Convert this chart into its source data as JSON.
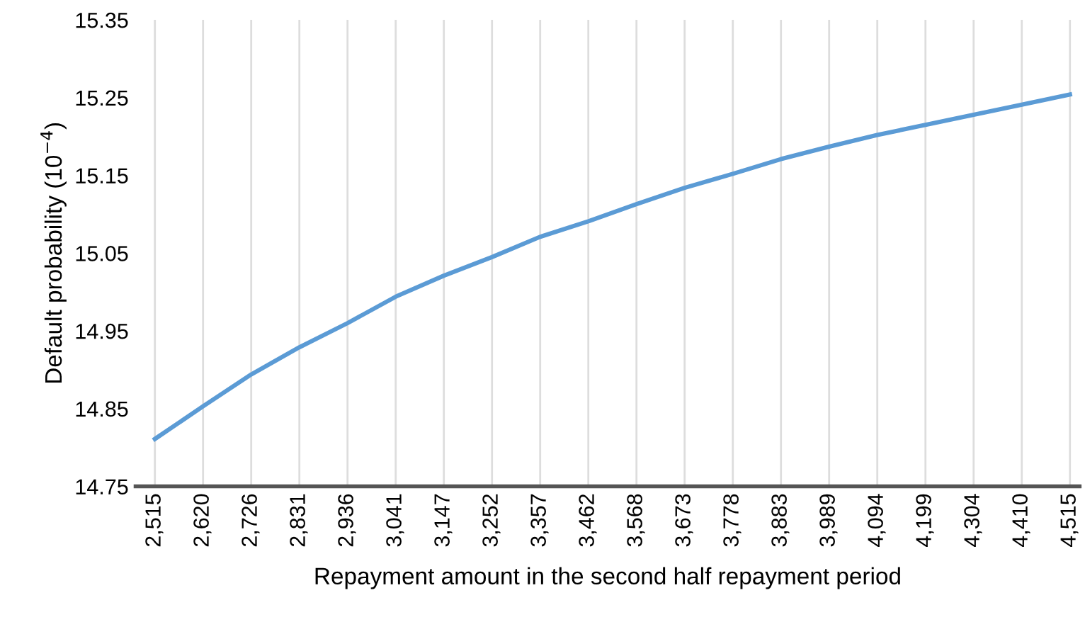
{
  "chart_data": {
    "type": "line",
    "xlabel": "Repayment amount in the second half repayment period",
    "ylabel": "Default probability (10$^{−4}$)",
    "categories": [
      "2,515",
      "2,620",
      "2,726",
      "2,831",
      "2,936",
      "3,041",
      "3,147",
      "3,252",
      "3,357",
      "3,462",
      "3,568",
      "3,673",
      "3,778",
      "3,883",
      "3,989",
      "4,094",
      "4,199",
      "4,304",
      "4,410",
      "4,515"
    ],
    "series": [
      {
        "color": "#5b9bd5",
        "values": [
          14.811,
          14.853,
          14.894,
          14.929,
          14.96,
          14.994,
          15.021,
          15.045,
          15.071,
          15.091,
          15.113,
          15.134,
          15.152,
          15.171,
          15.187,
          15.202,
          15.215,
          15.228,
          15.241,
          15.254
        ]
      }
    ],
    "ylim": [
      14.75,
      15.35
    ],
    "yticks": [
      {
        "value": 14.75,
        "label": "14.75"
      },
      {
        "value": 14.85,
        "label": "14.85"
      },
      {
        "value": 14.95,
        "label": "14.95"
      },
      {
        "value": 15.05,
        "label": "15.05"
      },
      {
        "value": 15.15,
        "label": "15.15"
      },
      {
        "value": 15.25,
        "label": "15.25"
      },
      {
        "value": 15.35,
        "label": "15.35"
      }
    ],
    "grid": "x",
    "marker": "none",
    "line_style": "solid"
  }
}
